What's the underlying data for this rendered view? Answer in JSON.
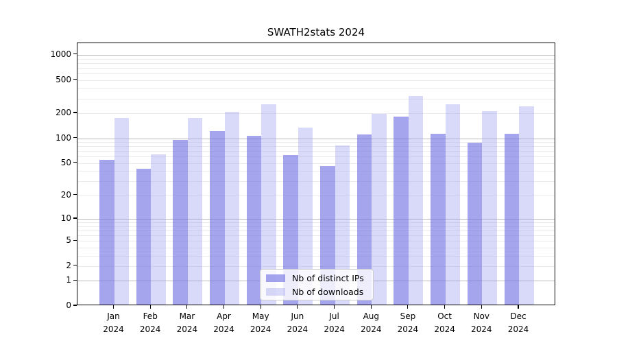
{
  "title": "SWATH2stats 2024",
  "chart_data": {
    "type": "bar",
    "title": "SWATH2stats 2024",
    "categories": [
      "Jan",
      "Feb",
      "Mar",
      "Apr",
      "May",
      "Jun",
      "Jul",
      "Aug",
      "Sep",
      "Oct",
      "Nov",
      "Dec"
    ],
    "category_year": "2024",
    "series": [
      {
        "name": "Nb of distinct IPs",
        "color": "rgba(110,110,226,0.62)",
        "values": [
          53,
          41,
          92,
          117,
          103,
          60,
          44,
          107,
          174,
          110,
          85,
          108
        ]
      },
      {
        "name": "Nb of downloads",
        "color": "rgba(160,160,240,0.40)",
        "values": [
          169,
          61,
          169,
          200,
          248,
          129,
          79,
          189,
          312,
          248,
          204,
          234
        ]
      }
    ],
    "xlabel": "",
    "ylabel": "",
    "yscale": "log1p",
    "yticks": [
      0,
      1,
      2,
      5,
      10,
      20,
      50,
      100,
      200,
      500,
      1000
    ],
    "ylim": [
      0,
      1409
    ],
    "grid": true,
    "grid_major_color": "#b8b8b8",
    "grid_minor_color": "#ebebeb",
    "legend_position": "lower center inside",
    "background_color": "#ffffff",
    "axis_color": "#000000"
  }
}
